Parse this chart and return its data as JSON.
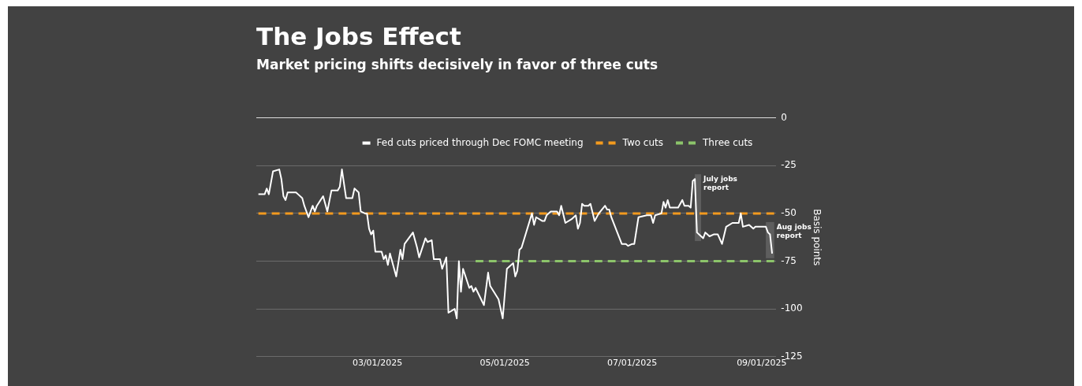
{
  "chart_data": {
    "type": "line",
    "title": "The Jobs Effect",
    "subtitle": "Market pricing shifts decisively in favor of three cuts",
    "ylabel": "Basis points",
    "xlim": [
      "2025-01-02",
      "2025-09-08"
    ],
    "xticks": [
      {
        "value": "2025-03-01",
        "label": "03/01/2025"
      },
      {
        "value": "2025-05-01",
        "label": "05/01/2025"
      },
      {
        "value": "2025-07-01",
        "label": "07/01/2025"
      },
      {
        "value": "2025-09-01",
        "label": "09/01/2025"
      }
    ],
    "ylim": [
      -125,
      0
    ],
    "yticks": [
      -125,
      -100,
      -75,
      -50,
      -25,
      0
    ],
    "grid": "y",
    "legend": "top",
    "marker": "none",
    "line_style": "solid",
    "series": [
      {
        "name": "Fed cuts priced through Dec FOMC meeting",
        "color": "#ffffff",
        "x": [
          "2025-01-03",
          "2025-01-06",
          "2025-01-07",
          "2025-01-08",
          "2025-01-10",
          "2025-01-13",
          "2025-01-14",
          "2025-01-15",
          "2025-01-16",
          "2025-01-17",
          "2025-01-21",
          "2025-01-22",
          "2025-01-24",
          "2025-01-25",
          "2025-01-27",
          "2025-01-28",
          "2025-01-29",
          "2025-01-30",
          "2025-01-31",
          "2025-02-03",
          "2025-02-05",
          "2025-02-07",
          "2025-02-10",
          "2025-02-11",
          "2025-02-12",
          "2025-02-14",
          "2025-02-17",
          "2025-02-18",
          "2025-02-20",
          "2025-02-21",
          "2025-02-23",
          "2025-02-24",
          "2025-02-25",
          "2025-02-26",
          "2025-02-27",
          "2025-02-28",
          "2025-03-03",
          "2025-03-04",
          "2025-03-05",
          "2025-03-06",
          "2025-03-07",
          "2025-03-10",
          "2025-03-12",
          "2025-03-13",
          "2025-03-14",
          "2025-03-18",
          "2025-03-20",
          "2025-03-21",
          "2025-03-24",
          "2025-03-25",
          "2025-03-27",
          "2025-03-28",
          "2025-03-31",
          "2025-04-01",
          "2025-04-03",
          "2025-04-04",
          "2025-04-07",
          "2025-04-08",
          "2025-04-09",
          "2025-04-10",
          "2025-04-11",
          "2025-04-14",
          "2025-04-15",
          "2025-04-16",
          "2025-04-17",
          "2025-04-21",
          "2025-04-23",
          "2025-04-24",
          "2025-04-28",
          "2025-04-30",
          "2025-05-02",
          "2025-05-05",
          "2025-05-06",
          "2025-05-07",
          "2025-05-08",
          "2025-05-09",
          "2025-05-14",
          "2025-05-15",
          "2025-05-16",
          "2025-05-19",
          "2025-05-20",
          "2025-05-21",
          "2025-05-23",
          "2025-05-26",
          "2025-05-27",
          "2025-05-28",
          "2025-05-30",
          "2025-06-02",
          "2025-06-04",
          "2025-06-05",
          "2025-06-06",
          "2025-06-07",
          "2025-06-08",
          "2025-06-10",
          "2025-06-11",
          "2025-06-13",
          "2025-06-15",
          "2025-06-18",
          "2025-06-19",
          "2025-06-20",
          "2025-06-21",
          "2025-06-26",
          "2025-06-28",
          "2025-06-29",
          "2025-07-01",
          "2025-07-02",
          "2025-07-04",
          "2025-07-08",
          "2025-07-10",
          "2025-07-11",
          "2025-07-12",
          "2025-07-15",
          "2025-07-16",
          "2025-07-17",
          "2025-07-18",
          "2025-07-19",
          "2025-07-23",
          "2025-07-25",
          "2025-07-26",
          "2025-07-28",
          "2025-07-29",
          "2025-07-30",
          "2025-07-31",
          "2025-08-01",
          "2025-08-03",
          "2025-08-04",
          "2025-08-05",
          "2025-08-06",
          "2025-08-07",
          "2025-08-09",
          "2025-08-11",
          "2025-08-13",
          "2025-08-15",
          "2025-08-18",
          "2025-08-20",
          "2025-08-21",
          "2025-08-22",
          "2025-08-23",
          "2025-08-26",
          "2025-08-28",
          "2025-08-29",
          "2025-09-02",
          "2025-09-03",
          "2025-09-04",
          "2025-09-05",
          "2025-09-06"
        ],
        "values": [
          -40,
          -40,
          -37,
          -40,
          -28,
          -27,
          -32,
          -41,
          -43,
          -39,
          -39,
          -40,
          -42,
          -46,
          -52,
          -49,
          -46,
          -49,
          -46,
          -41,
          -49,
          -38,
          -38,
          -36,
          -27,
          -42,
          -42,
          -37,
          -39,
          -49,
          -50,
          -50,
          -58,
          -61,
          -59,
          -70,
          -70,
          -74,
          -72,
          -77,
          -71,
          -83,
          -69,
          -74,
          -66,
          -60,
          -68,
          -73,
          -63,
          -65,
          -64,
          -74,
          -74,
          -79,
          -73,
          -102,
          -100,
          -105,
          -75,
          -91,
          -79,
          -89,
          -88,
          -91,
          -89,
          -98,
          -81,
          -88,
          -95,
          -105,
          -79,
          -76,
          -83,
          -80,
          -69,
          -68,
          -50,
          -56,
          -52,
          -54,
          -54,
          -51,
          -49,
          -49,
          -51,
          -46,
          -55,
          -53,
          -51,
          -58,
          -55,
          -45,
          -46,
          -46,
          -45,
          -54,
          -50,
          -46,
          -48,
          -48,
          -52,
          -66,
          -66,
          -67,
          -66,
          -66,
          -52,
          -51,
          -51,
          -55,
          -51,
          -50,
          -44,
          -47,
          -43,
          -47,
          -47,
          -43,
          -46,
          -46,
          -47,
          -33,
          -32,
          -60,
          -62,
          -63,
          -60,
          -61,
          -62,
          -61,
          -61,
          -66,
          -57,
          -55,
          -55,
          -55,
          -50,
          -57,
          -56,
          -58,
          -57,
          -57,
          -57,
          -60,
          -61,
          -71
        ]
      },
      {
        "name": "Two cuts",
        "color": "#f39a1e",
        "line_style": "dashed",
        "x": [
          "2025-01-03",
          "2025-09-07"
        ],
        "values": [
          -50,
          -50
        ]
      },
      {
        "name": "Three cuts",
        "color": "#8cc46a",
        "line_style": "dashed",
        "x": [
          "2025-04-17",
          "2025-09-07"
        ],
        "values": [
          -75,
          -75
        ]
      }
    ],
    "bands": [
      {
        "axis": "x",
        "from": "2025-07-31",
        "to": "2025-08-03",
        "label": "July jobs report",
        "color": "#5e5e5e"
      },
      {
        "axis": "x",
        "from": "2025-09-03",
        "to": "2025-09-07",
        "label": "Aug jobs report",
        "color": "#5e5e5e"
      }
    ]
  }
}
